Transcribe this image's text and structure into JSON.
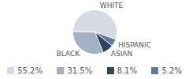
{
  "chart_data": {
    "type": "pie",
    "categories": [
      "WHITE",
      "BLACK",
      "ASIAN",
      "HISPANIC"
    ],
    "values": [
      55.2,
      31.5,
      8.1,
      5.2
    ],
    "value_labels": [
      "55.2%",
      "31.5%",
      "8.1%",
      "5.2%"
    ],
    "colors": [
      "#d5dae3",
      "#a4b1c4",
      "#2c4563",
      "#5f7b9c"
    ],
    "legend": "bottom"
  }
}
